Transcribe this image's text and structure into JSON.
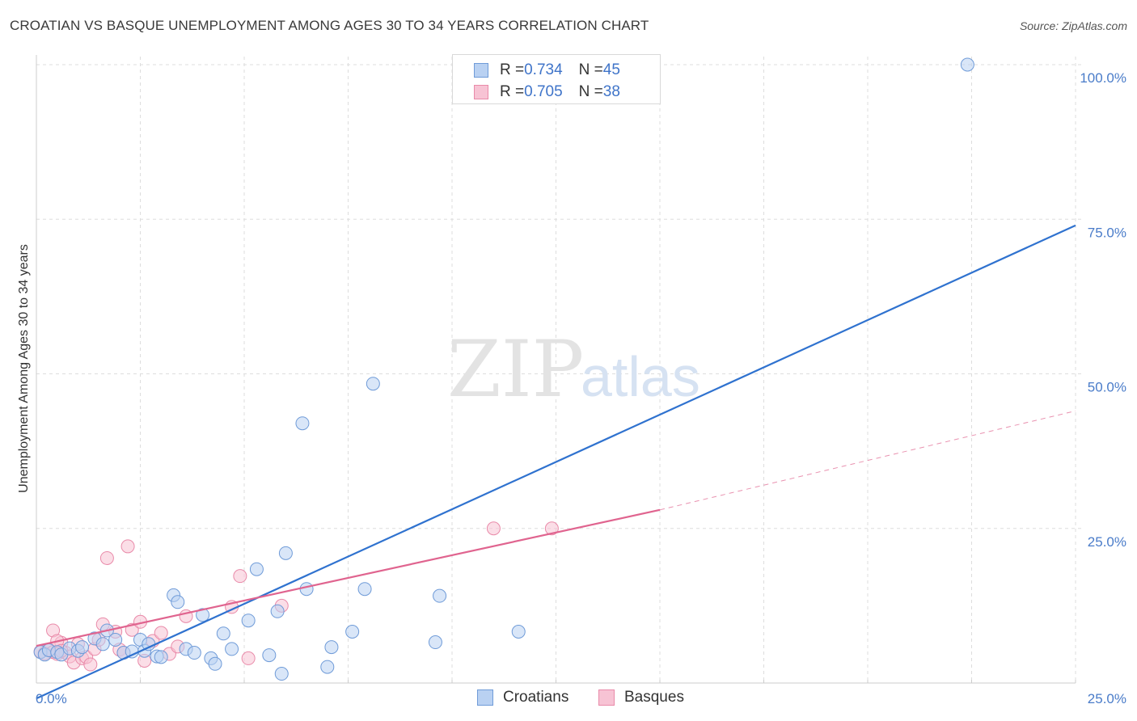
{
  "title": "CROATIAN VS BASQUE UNEMPLOYMENT AMONG AGES 30 TO 34 YEARS CORRELATION CHART",
  "source": "Source: ZipAtlas.com",
  "watermark": {
    "zip": "ZIP",
    "atlas": "atlas"
  },
  "legend": {
    "rows": [
      {
        "r_label": "R = ",
        "r_value": "0.734",
        "n_label": "N = ",
        "n_value": "45"
      },
      {
        "r_label": "R = ",
        "r_value": "0.705",
        "n_label": "N = ",
        "n_value": "38"
      }
    ]
  },
  "colors": {
    "croatians_fill": "#b9d1f2",
    "croatians_stroke": "#6f9bd8",
    "croatians_line": "#2f72cf",
    "basques_fill": "#f7c3d4",
    "basques_stroke": "#e98aa9",
    "basques_line": "#e0648f",
    "tick": "#4a7cc9",
    "grid": "#dddddd"
  },
  "chart_data": {
    "type": "scatter",
    "title": "CROATIAN VS BASQUE UNEMPLOYMENT AMONG AGES 30 TO 34 YEARS CORRELATION CHART",
    "xlabel": "",
    "ylabel": "Unemployment Among Ages 30 to 34 years",
    "xlim": [
      0,
      25
    ],
    "ylim": [
      0,
      100
    ],
    "x_tick_labels": [
      "0.0%",
      "25.0%"
    ],
    "y_tick_labels": [
      "100.0%",
      "75.0%",
      "50.0%",
      "25.0%"
    ],
    "y_tick_values": [
      100,
      75,
      50,
      25
    ],
    "series": [
      {
        "name": "Croatians",
        "r": 0.734,
        "n": 45,
        "points": [
          [
            0.1,
            5.0
          ],
          [
            0.2,
            4.6
          ],
          [
            0.3,
            5.3
          ],
          [
            0.5,
            5.0
          ],
          [
            0.6,
            4.6
          ],
          [
            0.8,
            5.6
          ],
          [
            1.0,
            5.2
          ],
          [
            1.1,
            5.8
          ],
          [
            1.4,
            7.2
          ],
          [
            1.6,
            6.3
          ],
          [
            1.7,
            8.5
          ],
          [
            1.9,
            7.0
          ],
          [
            2.1,
            4.9
          ],
          [
            2.3,
            5.1
          ],
          [
            2.5,
            7.0
          ],
          [
            2.6,
            5.2
          ],
          [
            2.7,
            6.3
          ],
          [
            2.9,
            4.3
          ],
          [
            3.0,
            4.2
          ],
          [
            3.3,
            14.2
          ],
          [
            3.4,
            13.1
          ],
          [
            3.6,
            5.5
          ],
          [
            3.8,
            4.9
          ],
          [
            4.0,
            11.0
          ],
          [
            4.2,
            4.0
          ],
          [
            4.3,
            3.1
          ],
          [
            4.5,
            8.0
          ],
          [
            4.7,
            5.5
          ],
          [
            5.1,
            10.1
          ],
          [
            5.3,
            18.4
          ],
          [
            5.6,
            4.5
          ],
          [
            5.8,
            11.6
          ],
          [
            5.9,
            1.5
          ],
          [
            6.0,
            21.0
          ],
          [
            6.4,
            42.0
          ],
          [
            6.5,
            15.2
          ],
          [
            7.0,
            2.6
          ],
          [
            7.1,
            5.8
          ],
          [
            7.6,
            8.3
          ],
          [
            7.9,
            15.2
          ],
          [
            8.1,
            48.4
          ],
          [
            9.6,
            6.6
          ],
          [
            9.7,
            14.1
          ],
          [
            11.6,
            8.3
          ],
          [
            22.4,
            100.0
          ]
        ],
        "trend": {
          "x0": 0.0,
          "y0": -2.5,
          "x1": 25.0,
          "y1": 74.0
        }
      },
      {
        "name": "Basques",
        "r": 0.705,
        "n": 38,
        "points": [
          [
            0.1,
            5.1
          ],
          [
            0.2,
            4.8
          ],
          [
            0.3,
            5.4
          ],
          [
            0.4,
            5.0
          ],
          [
            0.5,
            4.7
          ],
          [
            0.6,
            6.5
          ],
          [
            0.7,
            4.9
          ],
          [
            0.8,
            4.3
          ],
          [
            0.9,
            3.3
          ],
          [
            1.0,
            6.3
          ],
          [
            1.1,
            4.0
          ],
          [
            1.2,
            4.2
          ],
          [
            1.3,
            3.0
          ],
          [
            1.4,
            5.5
          ],
          [
            1.5,
            7.0
          ],
          [
            1.6,
            9.5
          ],
          [
            1.7,
            20.2
          ],
          [
            1.9,
            8.3
          ],
          [
            2.0,
            5.4
          ],
          [
            2.1,
            4.9
          ],
          [
            2.2,
            22.1
          ],
          [
            2.3,
            8.6
          ],
          [
            2.5,
            9.9
          ],
          [
            2.6,
            3.6
          ],
          [
            2.8,
            6.8
          ],
          [
            3.0,
            8.1
          ],
          [
            3.2,
            4.7
          ],
          [
            3.4,
            5.9
          ],
          [
            3.6,
            10.8
          ],
          [
            4.7,
            12.3
          ],
          [
            4.9,
            17.3
          ],
          [
            5.1,
            4.0
          ],
          [
            5.9,
            12.5
          ],
          [
            11.0,
            25.0
          ],
          [
            12.4,
            25.0
          ],
          [
            0.4,
            8.5
          ],
          [
            0.5,
            6.8
          ],
          [
            0.6,
            5.2
          ]
        ],
        "trend": {
          "x0": 0.0,
          "y0": 6.0,
          "x1": 15.0,
          "y1": 28.0
        },
        "trend_dashed": {
          "x0": 15.0,
          "y0": 28.0,
          "x1": 25.0,
          "y1": 44.0
        }
      }
    ],
    "legend_position": "top-center"
  }
}
